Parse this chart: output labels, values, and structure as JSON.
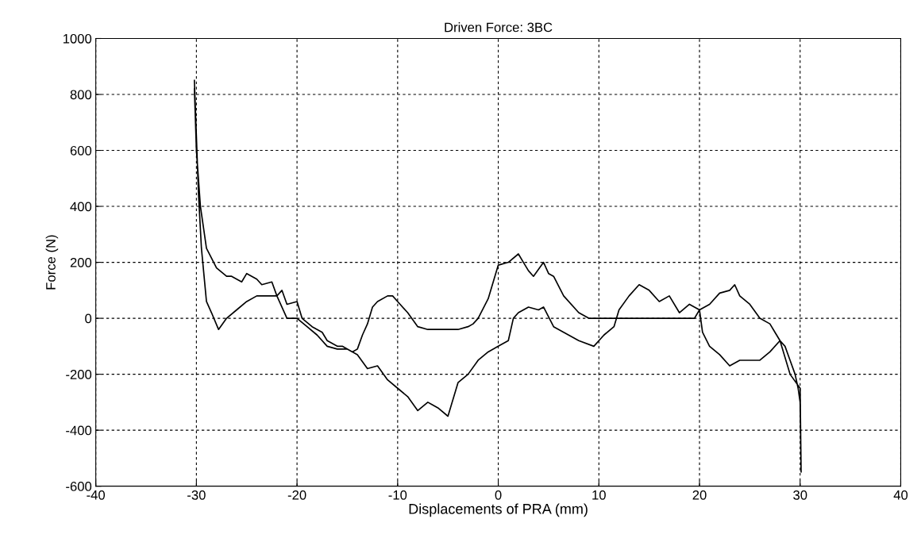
{
  "chart_data": {
    "type": "line",
    "title": "Driven Force: 3BC",
    "xlabel": "Displacements of PRA (mm)",
    "ylabel": "Force (N)",
    "xlim": [
      -40,
      40
    ],
    "xticks": [
      -40,
      -30,
      -20,
      -10,
      0,
      10,
      20,
      30,
      40
    ],
    "ylim": [
      -600,
      1000
    ],
    "yticks": [
      -600,
      -400,
      -200,
      0,
      200,
      400,
      600,
      800,
      1000
    ],
    "grid": true,
    "line_style": "solid",
    "marker": "none",
    "series": [
      {
        "color": "#000000",
        "x": [
          -30.2,
          -30,
          -29.6,
          -29,
          -28,
          -27,
          -26.5,
          -25.5,
          -25,
          -24,
          -23.5,
          -22.5,
          -22,
          -21.5,
          -21,
          -20,
          -19.5,
          -18.5,
          -17.5,
          -17,
          -16,
          -15.5,
          -14.5,
          -14,
          -13.5,
          -13,
          -12.5,
          -12,
          -11,
          -10.5,
          -10,
          -9,
          -8,
          -7,
          -6,
          -5,
          -4,
          -3,
          -2.5,
          -2,
          -1,
          -0.5,
          0,
          1,
          2,
          2.5,
          3,
          3.5,
          4.5,
          5,
          5.5,
          6.5,
          8,
          9,
          10,
          12,
          14,
          16,
          18,
          19.5,
          20,
          21,
          22,
          23,
          23.5,
          24,
          25,
          26,
          27,
          27.5,
          28,
          28.5,
          29,
          29.5,
          29.8,
          30,
          30.1,
          30,
          29,
          28,
          27,
          26,
          25,
          24,
          23,
          22,
          21,
          20.3,
          20,
          19,
          18,
          17,
          16,
          15,
          14,
          13,
          12,
          11.5,
          10.5,
          9.5,
          8,
          6.5,
          5.5,
          4.5,
          4,
          3,
          2,
          1.5,
          1,
          0,
          -1,
          -2,
          -3,
          -4,
          -5,
          -6,
          -7,
          -8,
          -9,
          -10,
          -11,
          -12,
          -13,
          -14,
          -15,
          -16,
          -17,
          -18,
          -19,
          -20,
          -21,
          -22,
          -23,
          -24,
          -25,
          -26,
          -27,
          -27.8,
          -28.5,
          -29,
          -29.5,
          -29.8,
          -30,
          -30.2
        ],
        "values": [
          820,
          600,
          400,
          250,
          180,
          150,
          150,
          130,
          160,
          140,
          120,
          130,
          80,
          100,
          50,
          60,
          0,
          -30,
          -50,
          -80,
          -100,
          -100,
          -120,
          -110,
          -60,
          -20,
          40,
          60,
          80,
          80,
          60,
          20,
          -30,
          -40,
          -40,
          -40,
          -40,
          -30,
          -20,
          0,
          70,
          130,
          190,
          200,
          230,
          200,
          170,
          150,
          200,
          160,
          150,
          80,
          20,
          0,
          0,
          0,
          0,
          0,
          0,
          0,
          30,
          50,
          90,
          100,
          120,
          80,
          50,
          0,
          -20,
          -50,
          -80,
          -100,
          -150,
          -200,
          -250,
          -300,
          -550,
          -250,
          -200,
          -80,
          -120,
          -150,
          -150,
          -150,
          -170,
          -130,
          -100,
          -50,
          30,
          50,
          20,
          80,
          60,
          100,
          120,
          80,
          30,
          -30,
          -60,
          -100,
          -80,
          -50,
          -30,
          40,
          30,
          40,
          20,
          0,
          -80,
          -100,
          -120,
          -150,
          -200,
          -230,
          -350,
          -320,
          -300,
          -330,
          -280,
          -250,
          -220,
          -170,
          -180,
          -130,
          -110,
          -110,
          -100,
          -60,
          -30,
          0,
          0,
          80,
          80,
          80,
          60,
          30,
          0,
          -40,
          20,
          60,
          250,
          450,
          650,
          850
        ]
      }
    ]
  }
}
